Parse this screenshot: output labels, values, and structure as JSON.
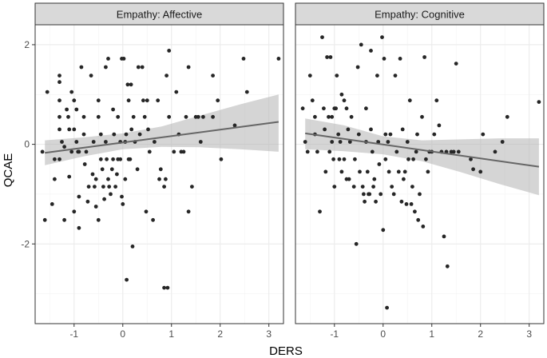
{
  "chart_data": {
    "type": "scatter",
    "xlabel": "DERS",
    "ylabel": "QCAE",
    "xlim": [
      -1.8,
      3.3
    ],
    "ylim": [
      -3.6,
      2.4
    ],
    "x_ticks": [
      -1,
      0,
      1,
      2,
      3
    ],
    "x_tick_labels": [
      "-1",
      "0",
      "1",
      "2",
      "3"
    ],
    "y_ticks": [
      -2,
      0,
      2
    ],
    "y_tick_labels": [
      "-2",
      "0",
      "2"
    ],
    "colors": {
      "panel_bg": "#ffffff",
      "grid_major": "#ebebeb",
      "strip_bg": "#d9d9d9",
      "border": "#333333",
      "point": "#262626",
      "line": "#666666",
      "ribbon": "#b3b3b3"
    },
    "panels": [
      {
        "strip": "Empathy: Affective",
        "fit": {
          "x": [
            -1.6,
            3.2
          ],
          "y": [
            -0.17,
            0.45
          ]
        },
        "ribbon": {
          "x": [
            -1.6,
            -0.8,
            0,
            0.8,
            1.6,
            2.4,
            3.2
          ],
          "lower": [
            -0.42,
            -0.24,
            -0.1,
            -0.05,
            -0.06,
            -0.1,
            -0.15
          ],
          "upper": [
            0.08,
            0.14,
            0.22,
            0.36,
            0.58,
            0.8,
            1.0
          ]
        },
        "points": [
          [
            -1.65,
            -0.15
          ],
          [
            -1.6,
            -1.52
          ],
          [
            -1.55,
            1.05
          ],
          [
            -1.45,
            -1.2
          ],
          [
            -1.4,
            -0.3
          ],
          [
            -1.4,
            -0.7
          ],
          [
            -1.3,
            1.38
          ],
          [
            -1.3,
            1.25
          ],
          [
            -1.3,
            0.88
          ],
          [
            -1.3,
            0.55
          ],
          [
            -1.3,
            0.3
          ],
          [
            -1.3,
            -0.3
          ],
          [
            -1.25,
            0.05
          ],
          [
            -1.2,
            -0.05
          ],
          [
            -1.2,
            -1.52
          ],
          [
            -1.15,
            0.7
          ],
          [
            -1.12,
            0.55
          ],
          [
            -1.1,
            0.3
          ],
          [
            -1.1,
            -0.65
          ],
          [
            -1.05,
            1.05
          ],
          [
            -1.05,
            -0.15
          ],
          [
            -1.0,
            0.88
          ],
          [
            -1.0,
            0.3
          ],
          [
            -1.0,
            -1.35
          ],
          [
            -0.95,
            0.7
          ],
          [
            -0.95,
            0.05
          ],
          [
            -0.92,
            -0.15
          ],
          [
            -0.9,
            -0.15
          ],
          [
            -0.9,
            -1.05
          ],
          [
            -0.9,
            -1.68
          ],
          [
            -0.85,
            1.55
          ],
          [
            -0.8,
            0.55
          ],
          [
            -0.8,
            0.2
          ],
          [
            -0.78,
            -0.4
          ],
          [
            -0.75,
            -0.15
          ],
          [
            -0.72,
            -1.15
          ],
          [
            -0.7,
            -0.85
          ],
          [
            -0.65,
            1.38
          ],
          [
            -0.62,
            -0.6
          ],
          [
            -0.6,
            0.05
          ],
          [
            -0.58,
            -0.85
          ],
          [
            -0.55,
            -0.7
          ],
          [
            -0.55,
            -1.25
          ],
          [
            -0.5,
            0.88
          ],
          [
            -0.5,
            0.55
          ],
          [
            -0.5,
            -1.52
          ],
          [
            -0.45,
            0.2
          ],
          [
            -0.45,
            -0.3
          ],
          [
            -0.42,
            -0.5
          ],
          [
            -0.4,
            -0.85
          ],
          [
            -0.38,
            -1.1
          ],
          [
            -0.35,
            1.55
          ],
          [
            -0.35,
            0.05
          ],
          [
            -0.33,
            -0.3
          ],
          [
            -0.3,
            1.72
          ],
          [
            -0.3,
            -0.7
          ],
          [
            -0.28,
            -0.85
          ],
          [
            -0.25,
            -1.0
          ],
          [
            -0.22,
            -0.5
          ],
          [
            -0.2,
            -0.3
          ],
          [
            -0.2,
            0.7
          ],
          [
            -0.18,
            0.2
          ],
          [
            -0.15,
            -0.85
          ],
          [
            -0.12,
            -0.6
          ],
          [
            -0.1,
            0.55
          ],
          [
            -0.1,
            -0.3
          ],
          [
            -0.05,
            0.05
          ],
          [
            -0.05,
            -0.3
          ],
          [
            -0.02,
            1.72
          ],
          [
            -0.02,
            -1.05
          ],
          [
            0.0,
            -1.2
          ],
          [
            0.02,
            1.72
          ],
          [
            0.05,
            0.05
          ],
          [
            0.05,
            -0.7
          ],
          [
            0.07,
            0.2
          ],
          [
            0.08,
            -2.72
          ],
          [
            0.1,
            1.2
          ],
          [
            0.12,
            0.88
          ],
          [
            0.12,
            -0.3
          ],
          [
            0.15,
            -0.3
          ],
          [
            0.17,
            1.2
          ],
          [
            0.18,
            0.3
          ],
          [
            0.2,
            -2.05
          ],
          [
            0.22,
            0.55
          ],
          [
            0.25,
            0.05
          ],
          [
            0.3,
            -0.5
          ],
          [
            0.32,
            1.55
          ],
          [
            0.35,
            0.2
          ],
          [
            0.4,
            1.55
          ],
          [
            0.42,
            0.88
          ],
          [
            0.45,
            0.55
          ],
          [
            0.48,
            -1.35
          ],
          [
            0.5,
            0.88
          ],
          [
            0.52,
            0.3
          ],
          [
            0.55,
            -0.15
          ],
          [
            0.62,
            -1.52
          ],
          [
            0.65,
            0.05
          ],
          [
            0.72,
            0.88
          ],
          [
            0.75,
            -0.7
          ],
          [
            0.78,
            -0.5
          ],
          [
            0.85,
            -2.88
          ],
          [
            0.85,
            -0.85
          ],
          [
            0.88,
            -0.7
          ],
          [
            0.9,
            1.38
          ],
          [
            0.92,
            -2.88
          ],
          [
            0.95,
            1.88
          ],
          [
            0.95,
            0.55
          ],
          [
            1.05,
            -0.15
          ],
          [
            1.1,
            1.05
          ],
          [
            1.15,
            0.2
          ],
          [
            1.2,
            -0.15
          ],
          [
            1.25,
            -0.15
          ],
          [
            1.3,
            0.55
          ],
          [
            1.35,
            1.55
          ],
          [
            1.35,
            -1.35
          ],
          [
            1.42,
            -0.85
          ],
          [
            1.5,
            0.55
          ],
          [
            1.55,
            0.55
          ],
          [
            1.6,
            0.05
          ],
          [
            1.65,
            0.55
          ],
          [
            1.85,
            1.38
          ],
          [
            1.85,
            0.55
          ],
          [
            1.95,
            0.88
          ],
          [
            2.02,
            -0.3
          ],
          [
            2.3,
            0.38
          ],
          [
            2.48,
            1.72
          ],
          [
            2.55,
            1.05
          ],
          [
            3.2,
            1.72
          ]
        ]
      },
      {
        "strip": "Empathy: Cognitive",
        "fit": {
          "x": [
            -1.6,
            3.2
          ],
          "y": [
            0.22,
            -0.45
          ]
        },
        "ribbon": {
          "x": [
            -1.6,
            -0.8,
            0,
            0.8,
            1.6,
            2.4,
            3.2
          ],
          "lower": [
            -0.1,
            -0.14,
            -0.2,
            -0.34,
            -0.56,
            -0.8,
            -1.02
          ],
          "upper": [
            0.52,
            0.38,
            0.16,
            0.08,
            0.1,
            0.12,
            0.12
          ]
        },
        "points": [
          [
            -1.65,
            0.72
          ],
          [
            -1.6,
            0.05
          ],
          [
            -1.55,
            -0.15
          ],
          [
            -1.5,
            1.38
          ],
          [
            -1.45,
            0.88
          ],
          [
            -1.4,
            0.55
          ],
          [
            -1.4,
            0.2
          ],
          [
            -1.35,
            -0.15
          ],
          [
            -1.3,
            -1.35
          ],
          [
            -1.25,
            2.15
          ],
          [
            -1.22,
            0.72
          ],
          [
            -1.2,
            0.3
          ],
          [
            -1.18,
            -0.55
          ],
          [
            -1.15,
            1.75
          ],
          [
            -1.12,
            0.55
          ],
          [
            -1.1,
            -0.15
          ],
          [
            -1.08,
            1.75
          ],
          [
            -1.05,
            0.55
          ],
          [
            -1.05,
            0.05
          ],
          [
            -1.02,
            -0.3
          ],
          [
            -1.0,
            0.72
          ],
          [
            -1.0,
            -0.85
          ],
          [
            -0.97,
            0.72
          ],
          [
            -0.95,
            1.38
          ],
          [
            -0.92,
            0.2
          ],
          [
            -0.9,
            -0.3
          ],
          [
            -0.88,
            0.05
          ],
          [
            -0.85,
            1.0
          ],
          [
            -0.85,
            -0.55
          ],
          [
            -0.8,
            0.88
          ],
          [
            -0.8,
            -0.3
          ],
          [
            -0.75,
            0.72
          ],
          [
            -0.75,
            -0.7
          ],
          [
            -0.72,
            0.3
          ],
          [
            -0.7,
            -0.7
          ],
          [
            -0.68,
            0.05
          ],
          [
            -0.65,
            0.55
          ],
          [
            -0.6,
            -0.85
          ],
          [
            -0.58,
            -0.3
          ],
          [
            -0.55,
            -2.0
          ],
          [
            -0.52,
            1.55
          ],
          [
            -0.5,
            0.2
          ],
          [
            -0.48,
            -0.55
          ],
          [
            -0.45,
            2.0
          ],
          [
            -0.42,
            -0.85
          ],
          [
            -0.4,
            -1.0
          ],
          [
            -0.38,
            -1.15
          ],
          [
            -0.35,
            0.72
          ],
          [
            -0.35,
            0.05
          ],
          [
            -0.32,
            -0.55
          ],
          [
            -0.3,
            -1.0
          ],
          [
            -0.28,
            -1.0
          ],
          [
            -0.25,
            1.88
          ],
          [
            -0.25,
            0.3
          ],
          [
            -0.22,
            -0.15
          ],
          [
            -0.2,
            -0.85
          ],
          [
            -0.18,
            -0.7
          ],
          [
            -0.15,
            -1.15
          ],
          [
            -0.12,
            1.38
          ],
          [
            -0.1,
            0.05
          ],
          [
            -0.08,
            -0.4
          ],
          [
            -0.05,
            -1.0
          ],
          [
            -0.02,
            2.15
          ],
          [
            0.0,
            -1.72
          ],
          [
            0.02,
            1.72
          ],
          [
            0.05,
            0.2
          ],
          [
            0.05,
            -0.3
          ],
          [
            0.08,
            -3.28
          ],
          [
            0.1,
            0.05
          ],
          [
            0.12,
            -0.55
          ],
          [
            0.15,
            0.2
          ],
          [
            0.18,
            -0.85
          ],
          [
            0.22,
            -1.0
          ],
          [
            0.25,
            1.38
          ],
          [
            0.28,
            -0.15
          ],
          [
            0.32,
            -0.55
          ],
          [
            0.35,
            1.72
          ],
          [
            0.38,
            -1.15
          ],
          [
            0.4,
            0.3
          ],
          [
            0.42,
            -0.7
          ],
          [
            0.45,
            -0.55
          ],
          [
            0.48,
            -1.2
          ],
          [
            0.5,
            0.05
          ],
          [
            0.52,
            -0.3
          ],
          [
            0.55,
            0.88
          ],
          [
            0.58,
            -1.2
          ],
          [
            0.6,
            -0.85
          ],
          [
            0.62,
            -0.3
          ],
          [
            0.65,
            -1.35
          ],
          [
            0.68,
            -0.15
          ],
          [
            0.7,
            0.2
          ],
          [
            0.72,
            -1.52
          ],
          [
            0.75,
            -1.0
          ],
          [
            0.8,
            0.55
          ],
          [
            0.82,
            -1.65
          ],
          [
            0.85,
            1.75
          ],
          [
            0.88,
            -0.3
          ],
          [
            0.92,
            -0.55
          ],
          [
            0.95,
            -0.15
          ],
          [
            1.0,
            -0.15
          ],
          [
            1.05,
            0.2
          ],
          [
            1.1,
            0.88
          ],
          [
            1.15,
            0.38
          ],
          [
            1.2,
            -0.15
          ],
          [
            1.25,
            -1.85
          ],
          [
            1.3,
            -0.15
          ],
          [
            1.32,
            -2.45
          ],
          [
            1.4,
            -0.15
          ],
          [
            1.45,
            -0.15
          ],
          [
            1.5,
            1.62
          ],
          [
            1.55,
            -0.15
          ],
          [
            1.8,
            -0.3
          ],
          [
            1.85,
            -0.5
          ],
          [
            2.0,
            -0.55
          ],
          [
            2.05,
            0.2
          ],
          [
            2.3,
            -0.15
          ],
          [
            2.45,
            0.05
          ],
          [
            2.55,
            0.55
          ],
          [
            3.2,
            0.85
          ]
        ]
      }
    ]
  }
}
